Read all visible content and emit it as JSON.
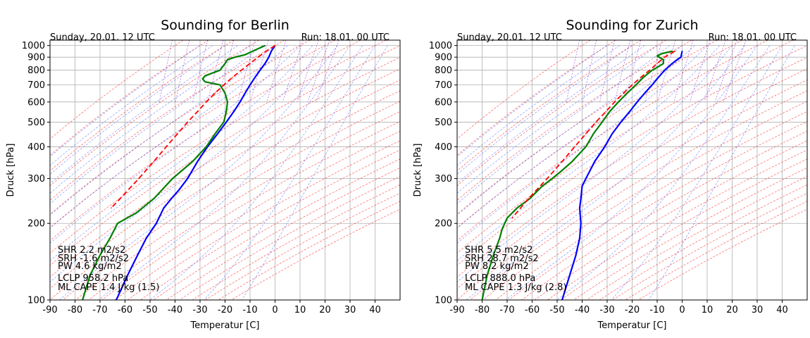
{
  "chart_data": [
    {
      "type": "line",
      "title": "Sounding for Berlin",
      "subtitle_left": "Sunday, 20.01. 12 UTC",
      "subtitle_right": "Run: 18.01. 00 UTC",
      "xlabel": "Temperatur [C]",
      "ylabel": "Druck [hPa]",
      "xlim": [
        -90,
        50
      ],
      "ylim": [
        1050,
        100
      ],
      "yscale": "log",
      "grid": true,
      "xticks": [
        -90,
        -80,
        -70,
        -60,
        -50,
        -40,
        -30,
        -20,
        -10,
        0,
        10,
        20,
        30,
        40
      ],
      "yticks": [
        100,
        200,
        300,
        400,
        500,
        600,
        700,
        800,
        900,
        1000
      ],
      "annotations": [
        "SHR 2.2 m2/s2",
        "SRH -1.6 m2/s2",
        "PW 4.6 kg/m2",
        "LCLP 958.2 hPa",
        "ML CAPE 1.4 J/kg (1.5)"
      ],
      "series": [
        {
          "key": "temperature",
          "color": "#0000ff",
          "p": [
            1000,
            950,
            900,
            850,
            800,
            750,
            700,
            650,
            600,
            550,
            500,
            450,
            400,
            350,
            300,
            270,
            250,
            230,
            200,
            175,
            150,
            125,
            100
          ],
          "t": [
            0,
            -1.5,
            -2.5,
            -4,
            -6,
            -8,
            -10,
            -12,
            -14,
            -16.5,
            -19.5,
            -23,
            -27,
            -31,
            -35,
            -38.5,
            -41.5,
            -44.5,
            -47.5,
            -51.5,
            -55,
            -59,
            -63.5
          ]
        },
        {
          "key": "dewpoint",
          "color": "#008000",
          "p": [
            1000,
            960,
            920,
            900,
            880,
            850,
            800,
            760,
            740,
            720,
            700,
            650,
            600,
            550,
            500,
            450,
            400,
            350,
            300,
            250,
            220,
            200,
            175,
            150,
            125,
            100
          ],
          "t": [
            -4,
            -8,
            -12,
            -16,
            -19,
            -20,
            -22,
            -28,
            -29,
            -28,
            -22,
            -20,
            -19,
            -19.5,
            -20.5,
            -24,
            -27.5,
            -33,
            -41,
            -48.5,
            -55.5,
            -63,
            -66,
            -70,
            -74,
            -77
          ]
        },
        {
          "key": "parcel",
          "color": "#ff0000",
          "p": [
            1000,
            950,
            900,
            850,
            800,
            750,
            700,
            650,
            600,
            550,
            500,
            450,
            400,
            350,
            300,
            250,
            230
          ],
          "t": [
            0,
            -3.5,
            -6.8,
            -10,
            -13.5,
            -17,
            -20.5,
            -24,
            -27.5,
            -31,
            -35,
            -39,
            -43.5,
            -48.5,
            -54.5,
            -62,
            -65.5
          ]
        }
      ]
    },
    {
      "type": "line",
      "title": "Sounding for Zurich",
      "subtitle_left": "Sunday, 20.01. 12 UTC",
      "subtitle_right": "Run: 18.01. 00 UTC",
      "xlabel": "Temperatur [C]",
      "ylabel": "Druck [hPa]",
      "xlim": [
        -90,
        50
      ],
      "ylim": [
        1050,
        100
      ],
      "yscale": "log",
      "grid": true,
      "xticks": [
        -90,
        -80,
        -70,
        -60,
        -50,
        -40,
        -30,
        -20,
        -10,
        0,
        10,
        20,
        30,
        40
      ],
      "yticks": [
        100,
        200,
        300,
        400,
        500,
        600,
        700,
        800,
        900,
        1000
      ],
      "annotations": [
        "SHR 5.5 m2/s2",
        "SRH 28.7 m2/s2",
        "PW 8.2 kg/m2",
        "LCLP 888.0 hPa",
        "ML CAPE 1.3 J/kg (2.8)"
      ],
      "series": [
        {
          "key": "temperature",
          "color": "#0000ff",
          "p": [
            950,
            900,
            880,
            850,
            800,
            750,
            700,
            650,
            600,
            550,
            500,
            450,
            400,
            350,
            300,
            280,
            250,
            230,
            200,
            175,
            150,
            125,
            100
          ],
          "t": [
            0,
            -0.5,
            -2,
            -4,
            -7,
            -9.5,
            -12,
            -15,
            -18,
            -21,
            -24.5,
            -28,
            -31,
            -35,
            -38.5,
            -40,
            -40.5,
            -41,
            -40.5,
            -41,
            -42.5,
            -45,
            -48
          ]
        },
        {
          "key": "dewpoint",
          "color": "#008000",
          "p": [
            950,
            930,
            910,
            880,
            850,
            820,
            800,
            750,
            700,
            650,
            600,
            550,
            500,
            450,
            400,
            350,
            320,
            300,
            280,
            250,
            230,
            210,
            190,
            175,
            150,
            125,
            100
          ],
          "t": [
            -4,
            -8,
            -10,
            -7.5,
            -7.5,
            -10,
            -12,
            -15.5,
            -18.5,
            -22,
            -25.5,
            -29,
            -32,
            -35.5,
            -38.5,
            -44,
            -48.5,
            -52,
            -56,
            -61,
            -66,
            -70,
            -72,
            -73,
            -75.5,
            -78,
            -80
          ]
        },
        {
          "key": "parcel",
          "color": "#ff0000",
          "p": [
            950,
            900,
            850,
            800,
            750,
            700,
            650,
            600,
            550,
            500,
            450,
            400,
            350,
            300,
            250,
            210
          ],
          "t": [
            -3,
            -7,
            -10,
            -13,
            -16.5,
            -20,
            -23.5,
            -27,
            -30.5,
            -34.5,
            -38.5,
            -43,
            -48,
            -54,
            -61.5,
            -68
          ]
        }
      ]
    }
  ]
}
